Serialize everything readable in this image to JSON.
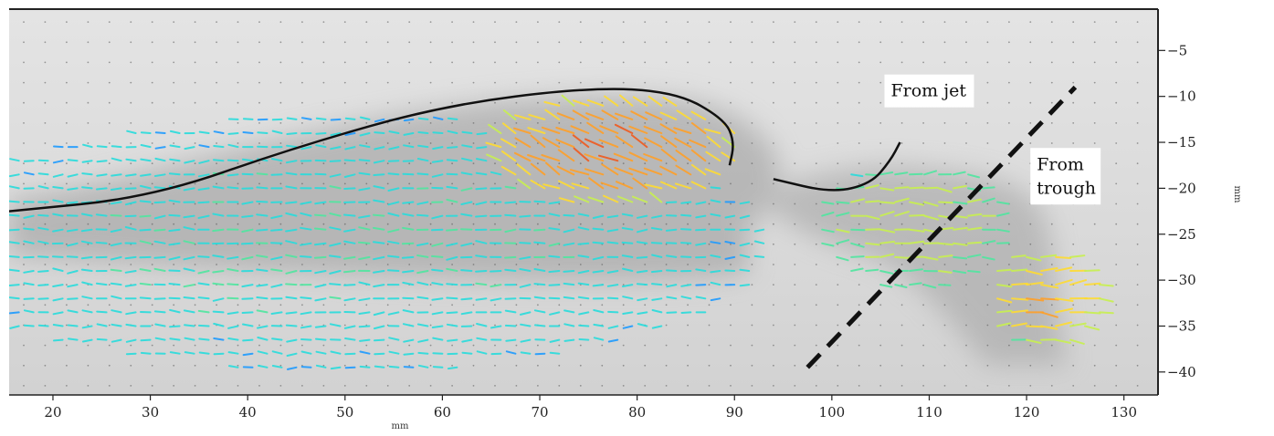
{
  "chart_data": {
    "type": "vector-field",
    "x_axis": {
      "label": "mm",
      "range": [
        15.5,
        133.5
      ],
      "ticks": [
        20,
        30,
        40,
        50,
        60,
        70,
        80,
        90,
        100,
        110,
        120,
        130
      ]
    },
    "y_axis": {
      "label": "mm",
      "range": [
        -42.5,
        -0.5
      ],
      "ticks": [
        -5,
        -10,
        -15,
        -20,
        -25,
        -30,
        -35,
        -40
      ]
    },
    "grid": false,
    "velocity_colormap": [
      "#3232e6",
      "#1e9bff",
      "#28dcdc",
      "#50e6a0",
      "#c8f050",
      "#ffdc32",
      "#ffa028",
      "#f05a1e"
    ],
    "annotations": [
      {
        "text": "From jet",
        "x": 110,
        "y": -10
      },
      {
        "text": "From trough",
        "lines": [
          "From",
          "trough"
        ],
        "x": 124,
        "y": -18
      }
    ],
    "interface_curves": [
      {
        "name": "jet-crest-outline",
        "points": [
          [
            15.5,
            -22.5
          ],
          [
            30,
            -21
          ],
          [
            45,
            -15.5
          ],
          [
            60,
            -11
          ],
          [
            75,
            -9
          ],
          [
            84,
            -9.5
          ],
          [
            89,
            -12.5
          ],
          [
            90,
            -15
          ],
          [
            89.5,
            -17.5
          ]
        ]
      },
      {
        "name": "trough-outline",
        "points": [
          [
            94,
            -19
          ],
          [
            100,
            -20.5
          ],
          [
            104,
            -19.5
          ],
          [
            106,
            -17
          ],
          [
            107,
            -15
          ]
        ]
      }
    ],
    "separation_line": [
      [
        97.5,
        -39.5
      ],
      [
        125,
        -9
      ]
    ],
    "flow_regions": [
      {
        "name": "leftward-bulk-flow",
        "cx": 50,
        "cy": -26,
        "rx": 44,
        "ry": 14,
        "speed": 0.35,
        "direction": "left"
      },
      {
        "name": "jet-crest-high-speed",
        "cx": 78,
        "cy": -16,
        "rx": 13,
        "ry": 6,
        "speed": 0.95,
        "direction": "left-down"
      },
      {
        "name": "trough-recirculation",
        "cx": 108,
        "cy": -24,
        "rx": 10,
        "ry": 7,
        "speed": 0.6,
        "direction": "right"
      },
      {
        "name": "right-jet-tip",
        "cx": 122,
        "cy": -32,
        "rx": 6,
        "ry": 6,
        "speed": 0.8,
        "direction": "right"
      }
    ]
  }
}
